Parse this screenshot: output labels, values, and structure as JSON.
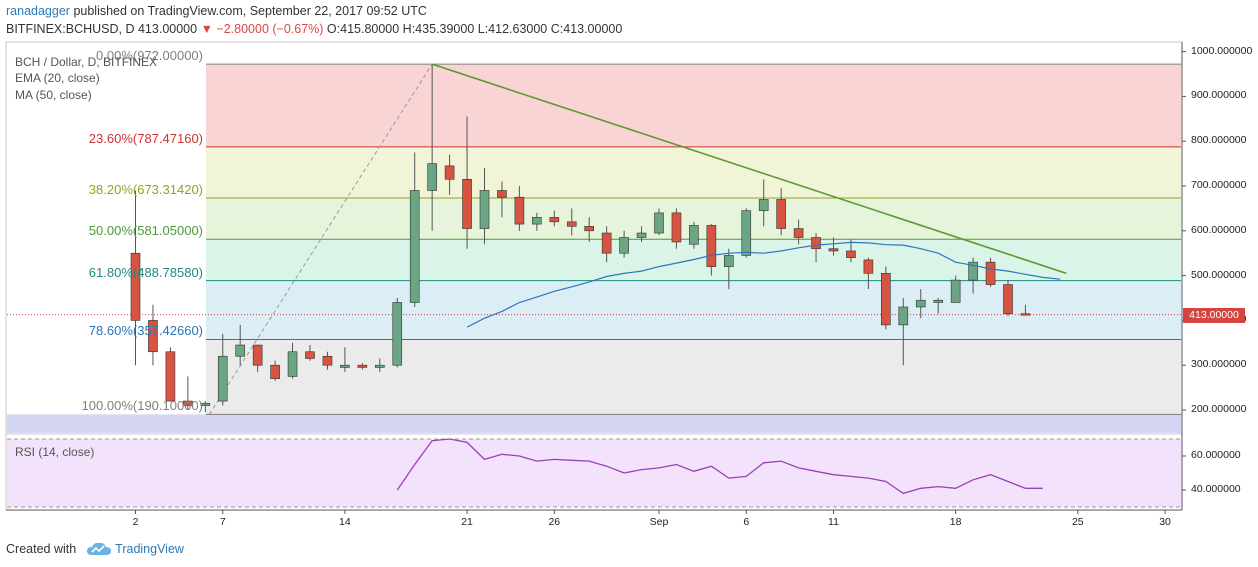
{
  "header": {
    "user": "ranadagger",
    "published": "published on TradingView.com, September 22, 2017 09:52 UTC",
    "symbol": "BITFINEX:BCHUSD, D",
    "last": "413.00000",
    "change": "▼ −2.80000 (−0.67%)",
    "ohlc": "O:415.80000 H:435.39000 L:412.63000 C:413.00000"
  },
  "legend": {
    "title": "BCH / Dollar, D, BITFINEX",
    "ema": "EMA (20, close)",
    "ma": "MA (50, close)",
    "rsi": "RSI (14, close)"
  },
  "footer": {
    "created": "Created with",
    "brand": "TradingView"
  },
  "colors": {
    "up": "#6ba583",
    "down": "#d75442",
    "ema": "#2f75c0",
    "trend": "#5a9a32",
    "rsi": "#9c3fb8",
    "price_line": "#d5443e"
  },
  "chart_data": [
    {
      "type": "candlestick",
      "title": "BCH / Dollar, D, BITFINEX",
      "ylim": [
        185,
        1005
      ],
      "y_ticks": [
        "1000.000000",
        "900.000000",
        "800.000000",
        "700.000000",
        "600.000000",
        "500.000000",
        "400.000000",
        "300.000000",
        "200.000000"
      ],
      "x_tick_labels": [
        "2",
        "7",
        "14",
        "21",
        "26",
        "Sep",
        "6",
        "11",
        "18",
        "25",
        "30"
      ],
      "last_price": "413.00000",
      "last_price_label": "413.00000",
      "candles": [
        {
          "o": 550,
          "h": 690,
          "l": 300,
          "c": 400
        },
        {
          "o": 400,
          "h": 435,
          "l": 300,
          "c": 330
        },
        {
          "o": 330,
          "h": 340,
          "l": 220,
          "c": 220
        },
        {
          "o": 220,
          "h": 275,
          "l": 200,
          "c": 210
        },
        {
          "o": 210,
          "h": 220,
          "l": 195,
          "c": 215
        },
        {
          "o": 220,
          "h": 370,
          "l": 210,
          "c": 320
        },
        {
          "o": 320,
          "h": 390,
          "l": 300,
          "c": 345
        },
        {
          "o": 345,
          "h": 345,
          "l": 285,
          "c": 300
        },
        {
          "o": 300,
          "h": 310,
          "l": 265,
          "c": 270
        },
        {
          "o": 275,
          "h": 350,
          "l": 270,
          "c": 330
        },
        {
          "o": 330,
          "h": 345,
          "l": 310,
          "c": 315
        },
        {
          "o": 320,
          "h": 330,
          "l": 290,
          "c": 300
        },
        {
          "o": 295,
          "h": 340,
          "l": 285,
          "c": 300
        },
        {
          "o": 300,
          "h": 305,
          "l": 290,
          "c": 295
        },
        {
          "o": 295,
          "h": 315,
          "l": 285,
          "c": 300
        },
        {
          "o": 300,
          "h": 450,
          "l": 295,
          "c": 440
        },
        {
          "o": 440,
          "h": 775,
          "l": 430,
          "c": 690
        },
        {
          "o": 690,
          "h": 970,
          "l": 600,
          "c": 750
        },
        {
          "o": 745,
          "h": 770,
          "l": 680,
          "c": 715
        },
        {
          "o": 715,
          "h": 855,
          "l": 560,
          "c": 605
        },
        {
          "o": 605,
          "h": 740,
          "l": 570,
          "c": 690
        },
        {
          "o": 690,
          "h": 710,
          "l": 630,
          "c": 675
        },
        {
          "o": 675,
          "h": 700,
          "l": 600,
          "c": 615
        },
        {
          "o": 615,
          "h": 640,
          "l": 600,
          "c": 630
        },
        {
          "o": 630,
          "h": 645,
          "l": 610,
          "c": 620
        },
        {
          "o": 620,
          "h": 650,
          "l": 590,
          "c": 610
        },
        {
          "o": 610,
          "h": 630,
          "l": 575,
          "c": 600
        },
        {
          "o": 595,
          "h": 610,
          "l": 530,
          "c": 550
        },
        {
          "o": 550,
          "h": 600,
          "l": 540,
          "c": 585
        },
        {
          "o": 585,
          "h": 610,
          "l": 575,
          "c": 595
        },
        {
          "o": 595,
          "h": 650,
          "l": 590,
          "c": 640
        },
        {
          "o": 640,
          "h": 650,
          "l": 560,
          "c": 575
        },
        {
          "o": 570,
          "h": 620,
          "l": 560,
          "c": 612
        },
        {
          "o": 612,
          "h": 615,
          "l": 500,
          "c": 520
        },
        {
          "o": 520,
          "h": 560,
          "l": 470,
          "c": 545
        },
        {
          "o": 545,
          "h": 650,
          "l": 540,
          "c": 645
        },
        {
          "o": 645,
          "h": 715,
          "l": 610,
          "c": 670
        },
        {
          "o": 670,
          "h": 695,
          "l": 590,
          "c": 605
        },
        {
          "o": 605,
          "h": 625,
          "l": 570,
          "c": 585
        },
        {
          "o": 585,
          "h": 595,
          "l": 530,
          "c": 560
        },
        {
          "o": 560,
          "h": 585,
          "l": 545,
          "c": 555
        },
        {
          "o": 555,
          "h": 580,
          "l": 530,
          "c": 540
        },
        {
          "o": 535,
          "h": 540,
          "l": 470,
          "c": 505
        },
        {
          "o": 505,
          "h": 520,
          "l": 380,
          "c": 390
        },
        {
          "o": 390,
          "h": 450,
          "l": 300,
          "c": 430
        },
        {
          "o": 430,
          "h": 470,
          "l": 405,
          "c": 445
        },
        {
          "o": 440,
          "h": 450,
          "l": 415,
          "c": 445
        },
        {
          "o": 440,
          "h": 500,
          "l": 440,
          "c": 490
        },
        {
          "o": 490,
          "h": 540,
          "l": 460,
          "c": 530
        },
        {
          "o": 530,
          "h": 540,
          "l": 475,
          "c": 480
        },
        {
          "o": 480,
          "h": 490,
          "l": 410,
          "c": 415
        },
        {
          "o": 415,
          "h": 435,
          "l": 412,
          "c": 413
        }
      ],
      "ema_20": [
        {
          "i": 19,
          "v": 385
        },
        {
          "i": 20,
          "v": 405
        },
        {
          "i": 21,
          "v": 420
        },
        {
          "i": 22,
          "v": 440
        },
        {
          "i": 23,
          "v": 452
        },
        {
          "i": 24,
          "v": 465
        },
        {
          "i": 25,
          "v": 475
        },
        {
          "i": 26,
          "v": 486
        },
        {
          "i": 27,
          "v": 498
        },
        {
          "i": 28,
          "v": 505
        },
        {
          "i": 29,
          "v": 510
        },
        {
          "i": 30,
          "v": 520
        },
        {
          "i": 31,
          "v": 528
        },
        {
          "i": 32,
          "v": 536
        },
        {
          "i": 33,
          "v": 545
        },
        {
          "i": 34,
          "v": 550
        },
        {
          "i": 35,
          "v": 552
        },
        {
          "i": 36,
          "v": 550
        },
        {
          "i": 37,
          "v": 555
        },
        {
          "i": 38,
          "v": 562
        },
        {
          "i": 39,
          "v": 568
        },
        {
          "i": 40,
          "v": 571
        },
        {
          "i": 41,
          "v": 574
        },
        {
          "i": 42,
          "v": 573
        },
        {
          "i": 43,
          "v": 569
        },
        {
          "i": 44,
          "v": 568
        },
        {
          "i": 45,
          "v": 560
        },
        {
          "i": 46,
          "v": 550
        },
        {
          "i": 47,
          "v": 530
        },
        {
          "i": 48,
          "v": 523
        },
        {
          "i": 49,
          "v": 515
        },
        {
          "i": 50,
          "v": 510
        },
        {
          "i": 51,
          "v": 503
        },
        {
          "i": 52,
          "v": 496
        },
        {
          "i": 53,
          "v": 492
        }
      ],
      "fib_levels": [
        {
          "label": "0.00%(972.00000)",
          "value": 972,
          "color": "#808080"
        },
        {
          "label": "23.60%(787.47160)",
          "value": 787.4716,
          "color": "#cc3333"
        },
        {
          "label": "38.20%(673.31420)",
          "value": 673.3142,
          "color": "#9aa021"
        },
        {
          "label": "50.00%(581.05000)",
          "value": 581.05,
          "color": "#4c9a3a"
        },
        {
          "label": "61.80%(488.78580)",
          "value": 488.7858,
          "color": "#1f8a7e"
        },
        {
          "label": "78.60%(357.42660)",
          "value": 357.4266,
          "color": "#2b74b8"
        },
        {
          "label": "100.00%(190.10000)",
          "value": 190.1,
          "color": "#808080"
        }
      ]
    },
    {
      "type": "line",
      "title": "RSI (14, close)",
      "ylim": [
        28,
        72
      ],
      "y_ticks": [
        "60.000000",
        "40.000000"
      ],
      "band": [
        30,
        70
      ],
      "x": [
        15,
        16,
        17,
        18,
        19,
        20,
        21,
        22,
        23,
        24,
        25,
        26,
        27,
        28,
        29,
        30,
        31,
        32,
        33,
        34,
        35,
        36,
        37,
        38,
        39,
        40,
        41,
        42,
        43,
        44,
        45,
        46,
        47,
        48,
        49,
        50,
        51,
        52
      ],
      "values": [
        40,
        55,
        69,
        70,
        68,
        58,
        61,
        60,
        57,
        58,
        57.5,
        57,
        54,
        50,
        52,
        53,
        55,
        51,
        54,
        47,
        48,
        56,
        57,
        53,
        51,
        49,
        48,
        47,
        45,
        38,
        41,
        42,
        41,
        46,
        49,
        45,
        41,
        41
      ]
    }
  ]
}
